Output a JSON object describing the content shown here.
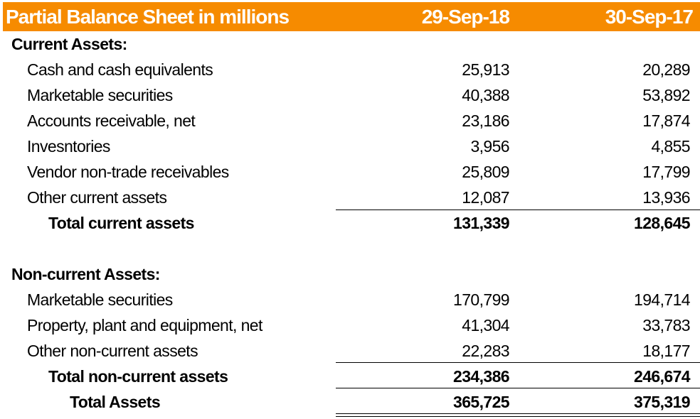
{
  "header": {
    "title": "Partial Balance Sheet in millions",
    "col1": "29-Sep-18",
    "col2": "30-Sep-17",
    "color": "#F68B00"
  },
  "rows": [
    {
      "label": "Current Assets:",
      "type": "section",
      "v1": "",
      "v2": ""
    },
    {
      "label": "Cash and cash equivalents",
      "type": "item",
      "v1": "25,913",
      "v2": "20,289"
    },
    {
      "label": "Marketable securities",
      "type": "item",
      "v1": "40,388",
      "v2": "53,892"
    },
    {
      "label": "Accounts receivable, net",
      "type": "item",
      "v1": "23,186",
      "v2": "17,874"
    },
    {
      "label": "Invesntories",
      "type": "item",
      "v1": "3,956",
      "v2": "4,855"
    },
    {
      "label": "Vendor non-trade receivables",
      "type": "item",
      "v1": "25,809",
      "v2": "17,799"
    },
    {
      "label": "Other current assets",
      "type": "item",
      "v1": "12,087",
      "v2": "13,936"
    },
    {
      "label": "Total current assets",
      "type": "total",
      "v1": "131,339",
      "v2": "128,645"
    },
    {
      "label": "",
      "type": "blank",
      "v1": "",
      "v2": ""
    },
    {
      "label": "Non-current Assets:",
      "type": "section",
      "v1": "",
      "v2": ""
    },
    {
      "label": "Marketable securities",
      "type": "item",
      "v1": "170,799",
      "v2": "194,714"
    },
    {
      "label": "Property, plant and equipment, net",
      "type": "item",
      "v1": "41,304",
      "v2": "33,783"
    },
    {
      "label": "Other non-current assets",
      "type": "item",
      "v1": "22,283",
      "v2": "18,177"
    },
    {
      "label": "Total non-current assets",
      "type": "total",
      "v1": "234,386",
      "v2": "246,674"
    },
    {
      "label": "Total Assets",
      "type": "grand",
      "v1": "365,725",
      "v2": "375,319"
    }
  ]
}
